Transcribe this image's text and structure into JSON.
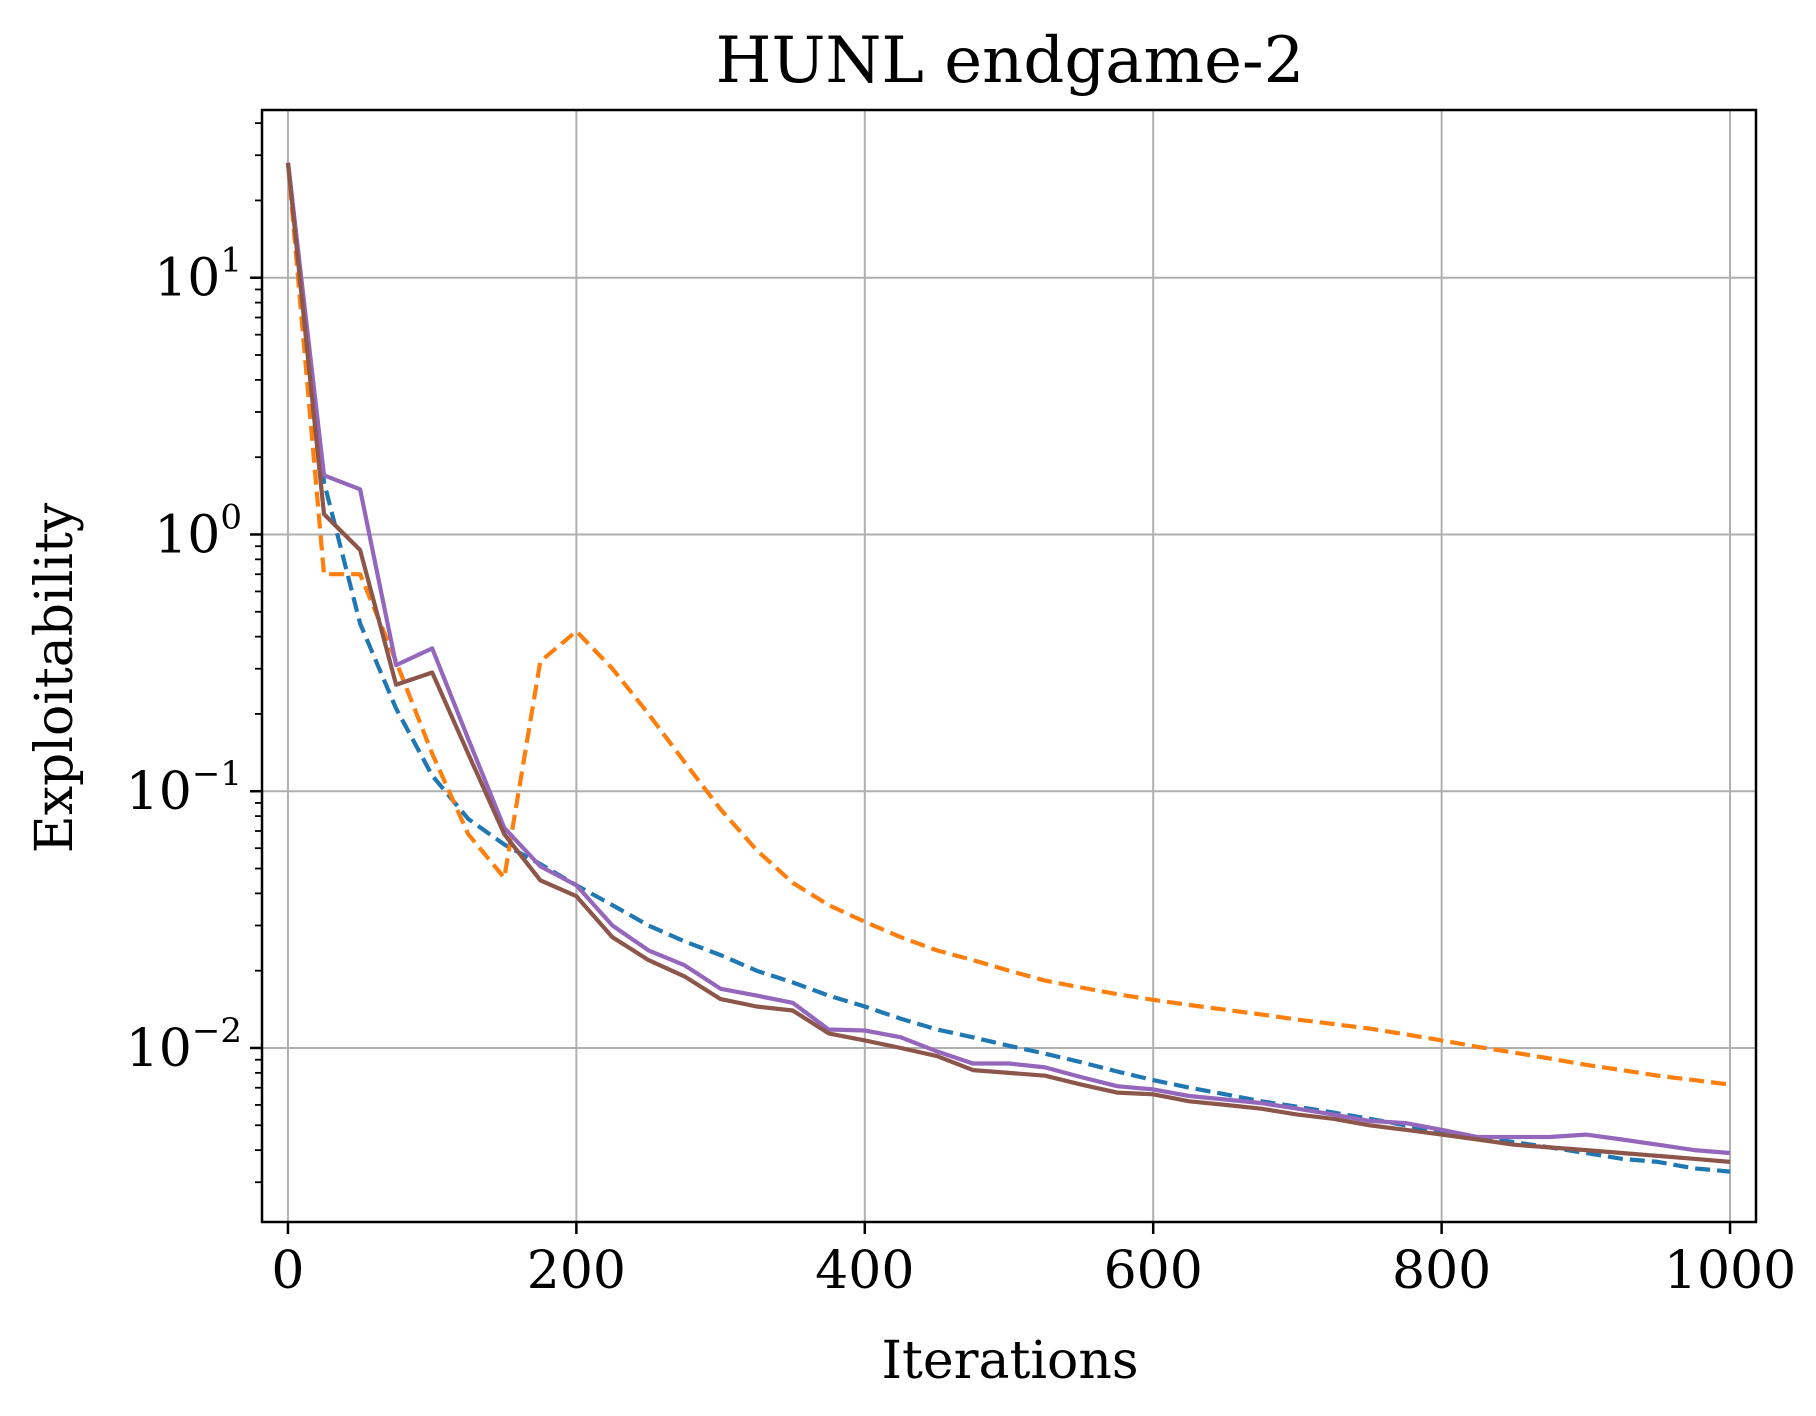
{
  "chart_data": {
    "type": "line",
    "title": "HUNL endgame-2",
    "xlabel": "Iterations",
    "ylabel": "Exploitability",
    "xlim": [
      -18,
      1018
    ],
    "ylim": [
      0.0021,
      45
    ],
    "yscale": "log",
    "grid": true,
    "x_ticks": [
      0,
      200,
      400,
      600,
      800,
      1000
    ],
    "x_tick_labels": [
      "0",
      "200",
      "400",
      "600",
      "800",
      "1000"
    ],
    "y_ticks": [
      {
        "value": 10,
        "base": "10",
        "exp": "1"
      },
      {
        "value": 1,
        "base": "10",
        "exp": "0"
      },
      {
        "value": 0.1,
        "base": "10",
        "exp": "−1"
      },
      {
        "value": 0.01,
        "base": "10",
        "exp": "−2"
      }
    ],
    "series": [
      {
        "color": "#1f77b4",
        "dash": "dashed",
        "points": [
          [
            0,
            28
          ],
          [
            25,
            1.6
          ],
          [
            50,
            0.45
          ],
          [
            75,
            0.21
          ],
          [
            100,
            0.115
          ],
          [
            125,
            0.078
          ],
          [
            150,
            0.062
          ],
          [
            175,
            0.052
          ],
          [
            200,
            0.043
          ],
          [
            225,
            0.036
          ],
          [
            250,
            0.03
          ],
          [
            275,
            0.026
          ],
          [
            300,
            0.023
          ],
          [
            325,
            0.02
          ],
          [
            350,
            0.018
          ],
          [
            375,
            0.016
          ],
          [
            400,
            0.0145
          ],
          [
            425,
            0.013
          ],
          [
            450,
            0.0118
          ],
          [
            475,
            0.011
          ],
          [
            500,
            0.0102
          ],
          [
            525,
            0.0095
          ],
          [
            550,
            0.0088
          ],
          [
            575,
            0.0081
          ],
          [
            600,
            0.0075
          ],
          [
            625,
            0.007
          ],
          [
            650,
            0.0066
          ],
          [
            675,
            0.0062
          ],
          [
            700,
            0.0059
          ],
          [
            725,
            0.0056
          ],
          [
            750,
            0.0053
          ],
          [
            775,
            0.005
          ],
          [
            800,
            0.0047
          ],
          [
            825,
            0.0045
          ],
          [
            850,
            0.0043
          ],
          [
            875,
            0.0041
          ],
          [
            900,
            0.0039
          ],
          [
            925,
            0.0037
          ],
          [
            950,
            0.0036
          ],
          [
            975,
            0.0034
          ],
          [
            1000,
            0.0033
          ]
        ]
      },
      {
        "color": "#ff7f0e",
        "dash": "dashed",
        "points": [
          [
            0,
            28
          ],
          [
            25,
            0.7
          ],
          [
            50,
            0.7
          ],
          [
            75,
            0.32
          ],
          [
            100,
            0.14
          ],
          [
            125,
            0.068
          ],
          [
            150,
            0.046
          ],
          [
            175,
            0.32
          ],
          [
            200,
            0.42
          ],
          [
            225,
            0.3
          ],
          [
            250,
            0.2
          ],
          [
            275,
            0.13
          ],
          [
            300,
            0.085
          ],
          [
            325,
            0.059
          ],
          [
            350,
            0.044
          ],
          [
            375,
            0.036
          ],
          [
            400,
            0.031
          ],
          [
            425,
            0.027
          ],
          [
            450,
            0.024
          ],
          [
            475,
            0.022
          ],
          [
            500,
            0.02
          ],
          [
            525,
            0.0183
          ],
          [
            550,
            0.0172
          ],
          [
            575,
            0.0162
          ],
          [
            600,
            0.0154
          ],
          [
            625,
            0.0147
          ],
          [
            650,
            0.0141
          ],
          [
            675,
            0.0135
          ],
          [
            700,
            0.0129
          ],
          [
            725,
            0.0124
          ],
          [
            750,
            0.0119
          ],
          [
            775,
            0.0113
          ],
          [
            800,
            0.0107
          ],
          [
            825,
            0.0101
          ],
          [
            850,
            0.0096
          ],
          [
            875,
            0.0091
          ],
          [
            900,
            0.0086
          ],
          [
            925,
            0.0082
          ],
          [
            950,
            0.0078
          ],
          [
            975,
            0.0075
          ],
          [
            1000,
            0.0072
          ]
        ]
      },
      {
        "color": "#9467bd",
        "dash": "solid",
        "points": [
          [
            0,
            28
          ],
          [
            25,
            1.7
          ],
          [
            50,
            1.5
          ],
          [
            75,
            0.31
          ],
          [
            100,
            0.36
          ],
          [
            125,
            0.16
          ],
          [
            150,
            0.072
          ],
          [
            175,
            0.051
          ],
          [
            200,
            0.043
          ],
          [
            225,
            0.03
          ],
          [
            250,
            0.024
          ],
          [
            275,
            0.021
          ],
          [
            300,
            0.017
          ],
          [
            325,
            0.016
          ],
          [
            350,
            0.015
          ],
          [
            375,
            0.0118
          ],
          [
            400,
            0.0117
          ],
          [
            425,
            0.011
          ],
          [
            450,
            0.0097
          ],
          [
            475,
            0.0087
          ],
          [
            500,
            0.0087
          ],
          [
            525,
            0.0084
          ],
          [
            550,
            0.0077
          ],
          [
            575,
            0.0071
          ],
          [
            600,
            0.0069
          ],
          [
            625,
            0.0065
          ],
          [
            650,
            0.0063
          ],
          [
            675,
            0.0061
          ],
          [
            700,
            0.0058
          ],
          [
            725,
            0.0055
          ],
          [
            750,
            0.0052
          ],
          [
            775,
            0.0051
          ],
          [
            800,
            0.0048
          ],
          [
            825,
            0.0045
          ],
          [
            850,
            0.0045
          ],
          [
            875,
            0.0045
          ],
          [
            900,
            0.0046
          ],
          [
            925,
            0.0044
          ],
          [
            950,
            0.0042
          ],
          [
            975,
            0.004
          ],
          [
            1000,
            0.0039
          ]
        ]
      },
      {
        "color": "#8c564b",
        "dash": "solid",
        "points": [
          [
            0,
            28
          ],
          [
            25,
            1.2
          ],
          [
            50,
            0.87
          ],
          [
            75,
            0.26
          ],
          [
            100,
            0.29
          ],
          [
            125,
            0.14
          ],
          [
            150,
            0.068
          ],
          [
            175,
            0.045
          ],
          [
            200,
            0.039
          ],
          [
            225,
            0.027
          ],
          [
            250,
            0.022
          ],
          [
            275,
            0.019
          ],
          [
            300,
            0.0155
          ],
          [
            325,
            0.0145
          ],
          [
            350,
            0.014
          ],
          [
            375,
            0.0114
          ],
          [
            400,
            0.0107
          ],
          [
            425,
            0.01
          ],
          [
            450,
            0.0093
          ],
          [
            475,
            0.0082
          ],
          [
            500,
            0.008
          ],
          [
            525,
            0.0078
          ],
          [
            550,
            0.0072
          ],
          [
            575,
            0.0067
          ],
          [
            600,
            0.0066
          ],
          [
            625,
            0.0062
          ],
          [
            650,
            0.006
          ],
          [
            675,
            0.0058
          ],
          [
            700,
            0.0055
          ],
          [
            725,
            0.0053
          ],
          [
            750,
            0.005
          ],
          [
            775,
            0.0048
          ],
          [
            800,
            0.0046
          ],
          [
            825,
            0.0044
          ],
          [
            850,
            0.0042
          ],
          [
            875,
            0.0041
          ],
          [
            900,
            0.004
          ],
          [
            925,
            0.0039
          ],
          [
            950,
            0.0038
          ],
          [
            975,
            0.0037
          ],
          [
            1000,
            0.0036
          ]
        ]
      }
    ]
  }
}
